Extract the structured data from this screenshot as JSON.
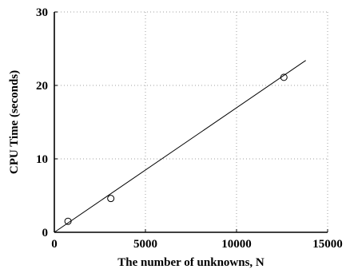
{
  "chart_data": {
    "type": "scatter",
    "xlabel": "The number of unknowns, N",
    "ylabel": "CPU Time (seconds)",
    "xlim": [
      0,
      15000
    ],
    "ylim": [
      0,
      30
    ],
    "x_ticks": [
      0,
      5000,
      10000,
      15000
    ],
    "y_ticks": [
      0,
      10,
      20,
      30
    ],
    "x_tick_labels": [
      "0",
      "5000",
      "10000",
      "15000"
    ],
    "y_tick_labels": [
      "0",
      "10",
      "20",
      "30"
    ],
    "grid": true,
    "grid_style": "dotted",
    "series": [
      {
        "type": "scatter",
        "marker": "open-circle",
        "points": [
          {
            "x": 750,
            "y": 1.5
          },
          {
            "x": 3100,
            "y": 4.6
          },
          {
            "x": 12600,
            "y": 21.1
          }
        ]
      },
      {
        "type": "line",
        "points": [
          {
            "x": 0,
            "y": 0
          },
          {
            "x": 13800,
            "y": 23.4
          }
        ]
      }
    ],
    "colors": {
      "line": "#000000",
      "marker": "#000000",
      "grid": "#a0a0a0",
      "axis": "#000000",
      "background": "#ffffff"
    }
  }
}
